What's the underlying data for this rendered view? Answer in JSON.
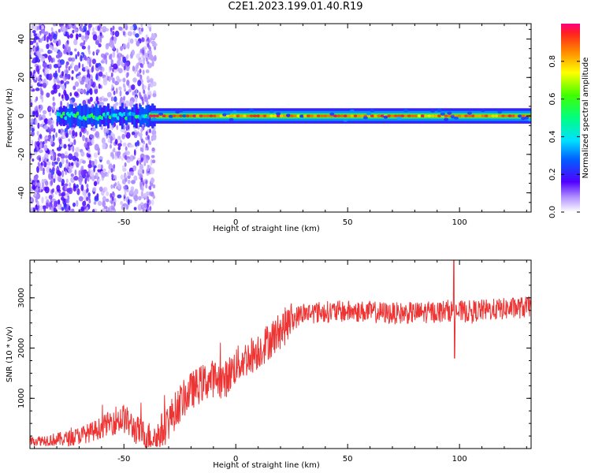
{
  "figure": {
    "title": "C2E1.2023.199.01.40.R19"
  },
  "chart_data": [
    {
      "type": "heatmap",
      "xlabel": "Height of straight line (km)",
      "ylabel": "Frequency (Hz)",
      "xlim": [
        -92,
        132
      ],
      "ylim": [
        -50,
        48
      ],
      "xticks": [
        -50,
        0,
        50,
        100
      ],
      "yticks": [
        -40,
        -20,
        0,
        20,
        40
      ],
      "xtick_labels": [
        "-50",
        "0",
        "50",
        "100"
      ],
      "ytick_labels": [
        "-40",
        "-20",
        "0",
        "20",
        "40"
      ],
      "colorbar": {
        "label": "Normalized spectral amplitude",
        "range": [
          0,
          1
        ],
        "ticks": [
          0.0,
          0.2,
          0.4,
          0.6,
          0.8
        ],
        "tick_labels": [
          "0.0",
          "0.2",
          "0.4",
          "0.6",
          "0.8"
        ]
      },
      "description": "Strong narrow band at 0 Hz for heights above about -38 km; broadband scattered energy below -38 km"
    },
    {
      "type": "line",
      "xlabel": "Height of straight line (km)",
      "ylabel": "SNR (10 * v/v)",
      "xlim": [
        -92,
        132
      ],
      "ylim": [
        0,
        3750
      ],
      "xticks": [
        -50,
        0,
        50,
        100
      ],
      "yticks": [
        1000,
        2000,
        3000
      ],
      "xtick_labels": [
        "-50",
        "0",
        "50",
        "100"
      ],
      "ytick_labels": [
        "1000",
        "2000",
        "3000"
      ],
      "color": "#ee3333",
      "series": [
        {
          "name": "SNR",
          "x": [
            -92,
            -85,
            -80,
            -75,
            -70,
            -65,
            -60,
            -55,
            -50,
            -45,
            -40,
            -35,
            -30,
            -25,
            -20,
            -15,
            -10,
            -5,
            0,
            5,
            10,
            15,
            20,
            25,
            30,
            40,
            50,
            60,
            70,
            80,
            90,
            95,
            100,
            110,
            120,
            132
          ],
          "values": [
            150,
            170,
            180,
            200,
            260,
            320,
            420,
            560,
            600,
            380,
            250,
            220,
            550,
            900,
            1150,
            1300,
            1400,
            1350,
            1650,
            1800,
            1950,
            2150,
            2350,
            2550,
            2700,
            2720,
            2730,
            2720,
            2690,
            2700,
            2720,
            2750,
            2720,
            2750,
            2780,
            2820
          ]
        }
      ]
    }
  ]
}
